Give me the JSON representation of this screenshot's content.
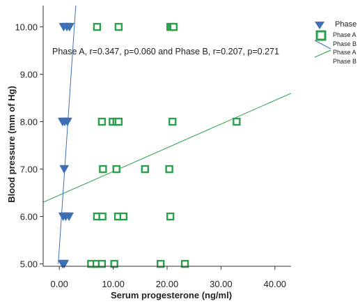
{
  "chart_data": {
    "type": "scatter",
    "title": "",
    "xlabel": "Serum progesterone (ng/ml)",
    "ylabel": "Blood pressure (mm of Hg)",
    "xlim": [
      -3,
      43
    ],
    "ylim": [
      4.95,
      10.45
    ],
    "x_ticks": [
      "0.00",
      "10.00",
      "20.00",
      "30.00",
      "40.00"
    ],
    "y_ticks": [
      "5.00",
      "6.00",
      "7.00",
      "8.00",
      "9.00",
      "10.00"
    ],
    "annotation": "Phase A, r=0.347, p=0.060 and Phase B, r=0.207, p=0.271",
    "legend": {
      "title": "Phase",
      "position": "top-right",
      "entries": [
        "Phase A",
        "Phase B",
        "Phase A",
        "Phase B"
      ]
    },
    "series": [
      {
        "name": "Phase A",
        "marker": "triangle-down",
        "color": "#3c6fb4",
        "points": [
          [
            0.8,
            10
          ],
          [
            1.4,
            10
          ],
          [
            1.9,
            10
          ],
          [
            0.6,
            8
          ],
          [
            1.0,
            8
          ],
          [
            1.5,
            8
          ],
          [
            0.9,
            7
          ],
          [
            0.7,
            6
          ],
          [
            1.2,
            6
          ],
          [
            1.8,
            6
          ],
          [
            0.6,
            5
          ],
          [
            0.9,
            5
          ]
        ]
      },
      {
        "name": "Phase B",
        "marker": "square",
        "color": "#2aa04a",
        "points": [
          [
            7.0,
            10
          ],
          [
            11.0,
            10
          ],
          [
            20.6,
            10
          ],
          [
            20.9,
            10
          ],
          [
            21.2,
            10
          ],
          [
            7.9,
            8
          ],
          [
            9.9,
            8
          ],
          [
            10.6,
            8
          ],
          [
            11.0,
            8
          ],
          [
            21.0,
            8
          ],
          [
            32.9,
            8
          ],
          [
            8.1,
            7
          ],
          [
            10.6,
            7
          ],
          [
            15.9,
            7
          ],
          [
            20.4,
            7
          ],
          [
            7.0,
            6
          ],
          [
            8.0,
            6
          ],
          [
            10.9,
            6
          ],
          [
            11.9,
            6
          ],
          [
            20.6,
            6
          ],
          [
            5.9,
            5
          ],
          [
            6.9,
            5
          ],
          [
            7.9,
            5
          ],
          [
            10.2,
            5
          ],
          [
            18.8,
            5
          ],
          [
            23.3,
            5
          ]
        ]
      }
    ],
    "fit_lines": [
      {
        "name": "Phase A",
        "color": "#3c6fb4",
        "points": [
          [
            -0.2,
            5.0
          ],
          [
            3.05,
            10.45
          ]
        ]
      },
      {
        "name": "Phase B",
        "color": "#2aa04a",
        "points": [
          [
            -3.0,
            6.3
          ],
          [
            43.0,
            8.6
          ]
        ]
      }
    ]
  }
}
